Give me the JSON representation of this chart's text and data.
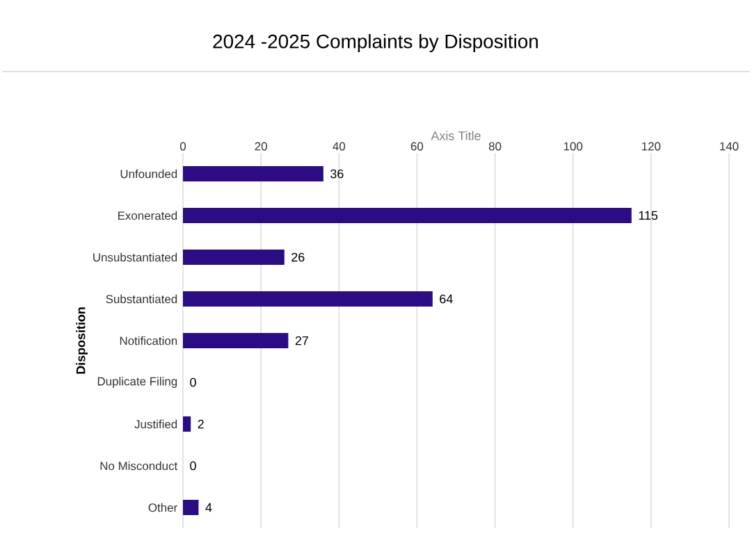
{
  "chart_data": {
    "type": "bar",
    "orientation": "horizontal",
    "title": "2024 -2025 Complaints by Disposition",
    "xlabel": "Axis Title",
    "ylabel": "Disposition",
    "categories": [
      "Unfounded",
      "Exonerated",
      "Unsubstantiated",
      "Substantiated",
      "Notification",
      "Duplicate Filing",
      "Justified",
      "No Misconduct",
      "Other"
    ],
    "values": [
      36,
      115,
      26,
      64,
      27,
      0,
      2,
      0,
      4
    ],
    "color": "#2b0c84",
    "xlim": [
      0,
      140
    ],
    "xticks": [
      0,
      20,
      40,
      60,
      80,
      100,
      120,
      140
    ],
    "grid": "x",
    "data_labels": true
  }
}
